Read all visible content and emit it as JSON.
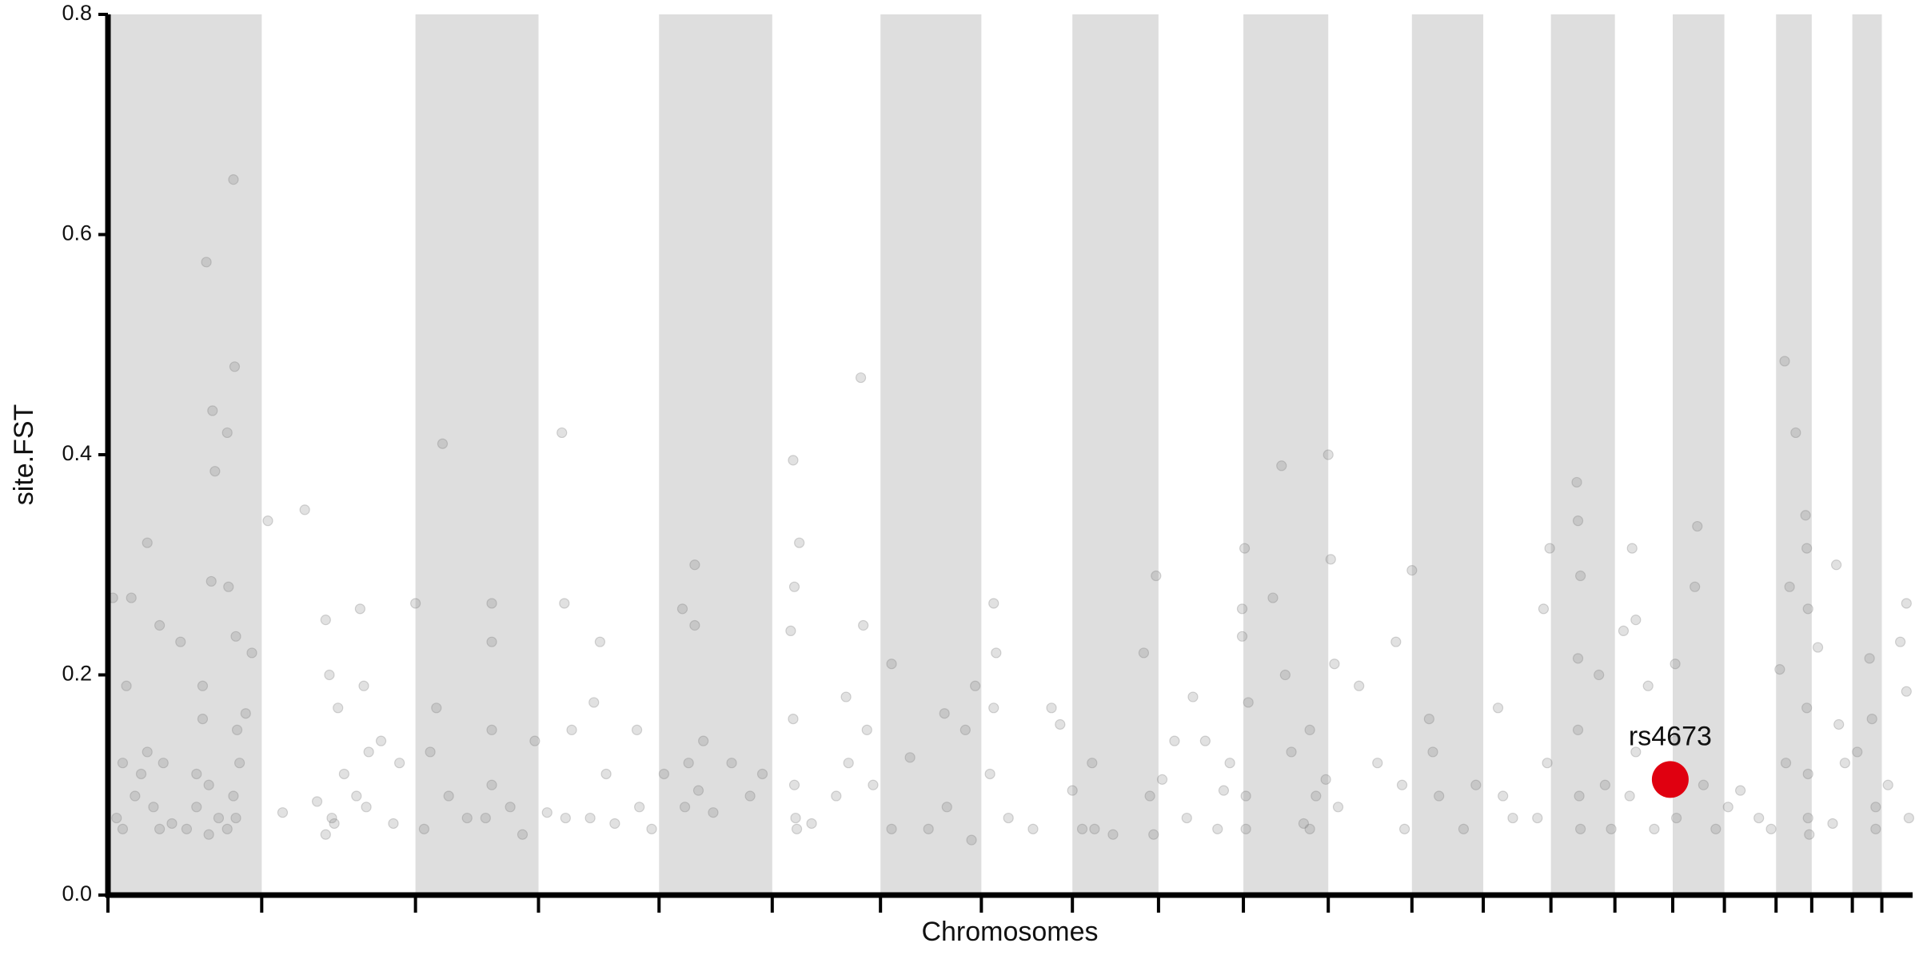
{
  "chart_data": {
    "type": "scatter",
    "xlabel": "Chromosomes",
    "ylabel": "site.FST",
    "xlim": [
      0,
      1467
    ],
    "ylim": [
      0,
      0.8
    ],
    "xticks": [
      0,
      125,
      250,
      350,
      448,
      540,
      628,
      710,
      784,
      854,
      923,
      992,
      1060,
      1118,
      1173,
      1225,
      1272,
      1314,
      1356,
      1385,
      1418,
      1442
    ],
    "yticks": [
      {
        "value": 0,
        "label": "0.0"
      },
      0.2,
      0.4,
      0.6,
      0.8
    ],
    "band_color": "#dedede",
    "series": [
      {
        "color": "#777777",
        "x": [
          4,
          7,
          12,
          15,
          19,
          22,
          27,
          32,
          37,
          42,
          45,
          52,
          59,
          64,
          72,
          77,
          80,
          82,
          84,
          85,
          87,
          90,
          97,
          98,
          102,
          103,
          104,
          104,
          105,
          107,
          112,
          117,
          12,
          32,
          42,
          82,
          97,
          102,
          72,
          77,
          130,
          142,
          160,
          170,
          177,
          180,
          182,
          184,
          187,
          192,
          205,
          208,
          210,
          212,
          222,
          232,
          237,
          177,
          202,
          250,
          257,
          262,
          267,
          272,
          277,
          292,
          307,
          312,
          312,
          312,
          312,
          327,
          347,
          337,
          357,
          369,
          371,
          372,
          377,
          392,
          395,
          400,
          405,
          412,
          430,
          432,
          442,
          452,
          467,
          469,
          472,
          477,
          477,
          480,
          484,
          492,
          507,
          522,
          532,
          557,
          558,
          557,
          558,
          559,
          560,
          562,
          555,
          572,
          592,
          600,
          612,
          614,
          617,
          622,
          602,
          637,
          637,
          652,
          667,
          680,
          682,
          697,
          702,
          705,
          720,
          722,
          720,
          717,
          732,
          752,
          767,
          774,
          784,
          792,
          800,
          802,
          817,
          842,
          847,
          850,
          852,
          857,
          867,
          877,
          882,
          892,
          902,
          912,
          907,
          924,
          922,
          922,
          927,
          925,
          925,
          947,
          954,
          957,
          962,
          972,
          977,
          982,
          990,
          977,
          992,
          994,
          997,
          1000,
          1017,
          1032,
          1047,
          1052,
          1054,
          1060,
          1074,
          1077,
          1082,
          1102,
          1112,
          1130,
          1134,
          1142,
          1162,
          1167,
          1170,
          1172,
          1194,
          1195,
          1197,
          1195,
          1195,
          1196,
          1197,
          1212,
          1217,
          1222,
          1232,
          1239,
          1242,
          1252,
          1242,
          1237,
          1257,
          1274,
          1274,
          1275,
          1290,
          1292,
          1297,
          1307,
          1317,
          1327,
          1342,
          1352,
          1359,
          1363,
          1367,
          1364,
          1372,
          1380,
          1381,
          1382,
          1381,
          1382,
          1382,
          1383,
          1390,
          1402,
          1407,
          1405,
          1412,
          1422,
          1432,
          1434,
          1437,
          1437,
          1447,
          1457,
          1462,
          1462,
          1464
        ],
        "values": [
          0.27,
          0.07,
          0.06,
          0.19,
          0.27,
          0.09,
          0.11,
          0.32,
          0.08,
          0.245,
          0.12,
          0.065,
          0.23,
          0.06,
          0.11,
          0.19,
          0.575,
          0.1,
          0.285,
          0.44,
          0.385,
          0.07,
          0.42,
          0.28,
          0.65,
          0.48,
          0.235,
          0.07,
          0.15,
          0.12,
          0.165,
          0.22,
          0.12,
          0.13,
          0.06,
          0.055,
          0.06,
          0.09,
          0.08,
          0.16,
          0.34,
          0.075,
          0.35,
          0.085,
          0.25,
          0.2,
          0.07,
          0.065,
          0.17,
          0.11,
          0.26,
          0.19,
          0.08,
          0.13,
          0.14,
          0.065,
          0.12,
          0.055,
          0.09,
          0.265,
          0.06,
          0.13,
          0.17,
          0.41,
          0.09,
          0.07,
          0.07,
          0.265,
          0.23,
          0.15,
          0.1,
          0.08,
          0.14,
          0.055,
          0.075,
          0.42,
          0.265,
          0.07,
          0.15,
          0.07,
          0.175,
          0.23,
          0.11,
          0.065,
          0.15,
          0.08,
          0.06,
          0.11,
          0.26,
          0.08,
          0.12,
          0.245,
          0.3,
          0.095,
          0.14,
          0.075,
          0.12,
          0.09,
          0.11,
          0.395,
          0.28,
          0.16,
          0.1,
          0.07,
          0.06,
          0.32,
          0.24,
          0.065,
          0.09,
          0.18,
          0.47,
          0.245,
          0.15,
          0.1,
          0.12,
          0.21,
          0.06,
          0.125,
          0.06,
          0.165,
          0.08,
          0.15,
          0.05,
          0.19,
          0.265,
          0.22,
          0.17,
          0.11,
          0.07,
          0.06,
          0.17,
          0.155,
          0.095,
          0.06,
          0.12,
          0.06,
          0.055,
          0.22,
          0.09,
          0.055,
          0.29,
          0.105,
          0.14,
          0.07,
          0.18,
          0.14,
          0.06,
          0.12,
          0.095,
          0.315,
          0.26,
          0.235,
          0.175,
          0.09,
          0.06,
          0.27,
          0.39,
          0.2,
          0.13,
          0.065,
          0.15,
          0.09,
          0.105,
          0.06,
          0.4,
          0.305,
          0.21,
          0.08,
          0.19,
          0.12,
          0.23,
          0.1,
          0.06,
          0.295,
          0.16,
          0.13,
          0.09,
          0.06,
          0.1,
          0.17,
          0.09,
          0.07,
          0.07,
          0.26,
          0.12,
          0.315,
          0.375,
          0.34,
          0.29,
          0.215,
          0.15,
          0.09,
          0.06,
          0.2,
          0.1,
          0.06,
          0.24,
          0.315,
          0.25,
          0.19,
          0.13,
          0.09,
          0.06,
          0.21,
          0.14,
          0.07,
          0.28,
          0.335,
          0.1,
          0.06,
          0.08,
          0.095,
          0.07,
          0.06,
          0.205,
          0.485,
          0.28,
          0.12,
          0.42,
          0.345,
          0.315,
          0.26,
          0.17,
          0.11,
          0.07,
          0.055,
          0.225,
          0.065,
          0.155,
          0.3,
          0.12,
          0.13,
          0.215,
          0.16,
          0.08,
          0.06,
          0.1,
          0.23,
          0.265,
          0.185,
          0.07
        ]
      }
    ],
    "highlight": {
      "label": "rs4673",
      "x": 1270,
      "y": 0.105,
      "color": "#e00010"
    }
  }
}
